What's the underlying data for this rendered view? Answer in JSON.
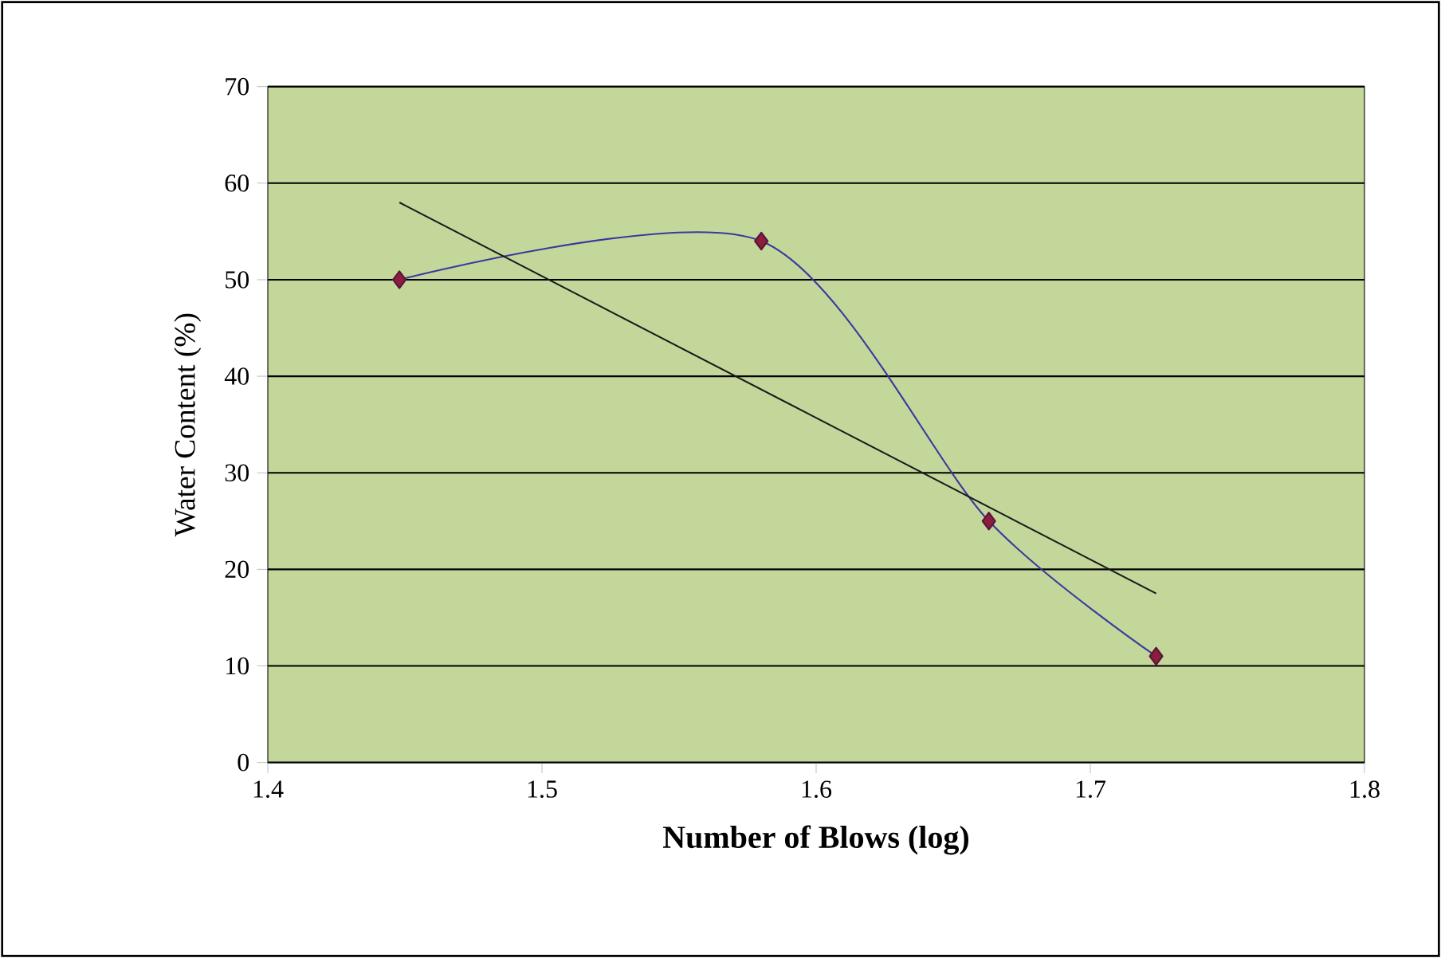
{
  "chart_data": {
    "type": "line",
    "xlabel": "Number of Blows (log)",
    "ylabel": "Water Content (%)",
    "xlim": [
      1.4,
      1.8
    ],
    "xticks": [
      1.4,
      1.5,
      1.6,
      1.7,
      1.8
    ],
    "ylim": [
      0,
      70
    ],
    "yticks": [
      0,
      10,
      20,
      30,
      40,
      50,
      60,
      70
    ],
    "grid": "y",
    "series": [
      {
        "x": [
          1.448,
          1.58,
          1.663,
          1.724
        ],
        "values": [
          50,
          54,
          25,
          11
        ],
        "color": "#3a3a9c",
        "marker": "diamond"
      },
      {
        "x": [
          1.448,
          1.724
        ],
        "values": [
          58,
          17.5
        ],
        "color": "#1a1a1a",
        "marker": "none"
      }
    ]
  }
}
